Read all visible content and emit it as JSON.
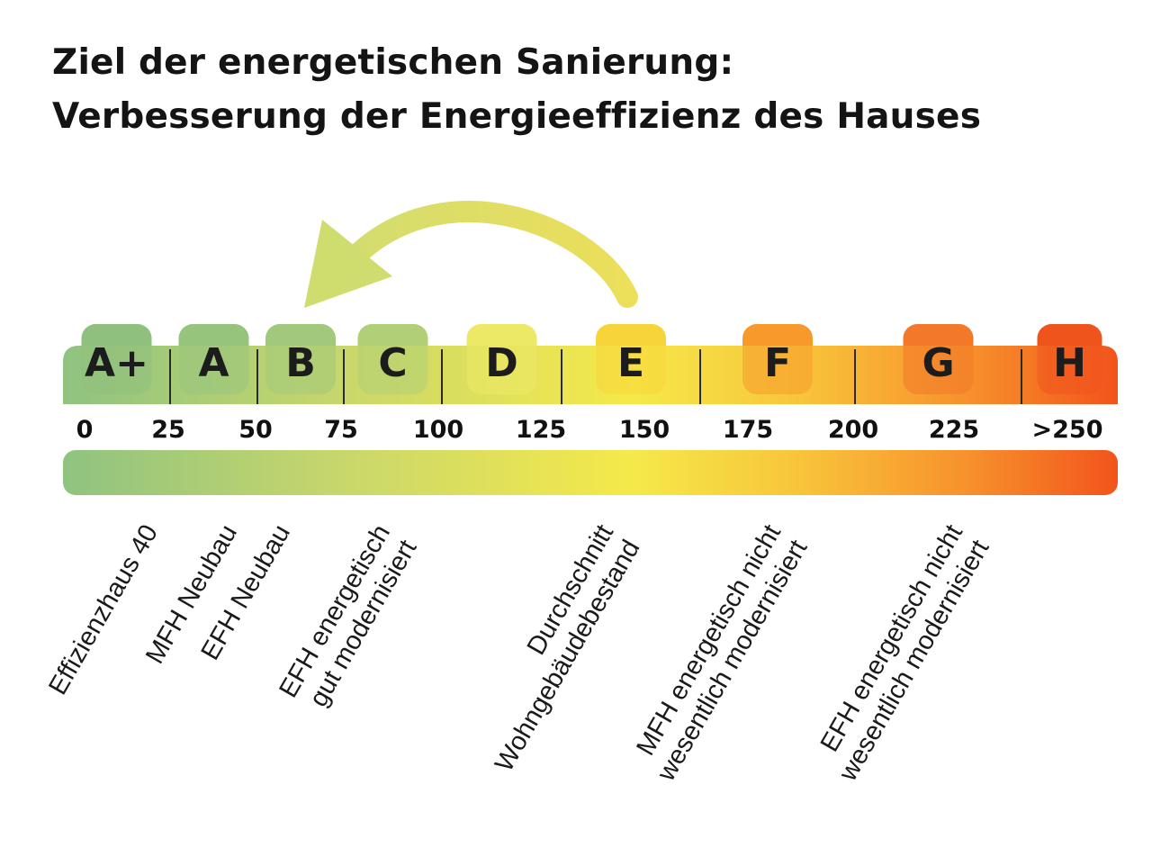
{
  "title": {
    "line1": "Ziel der energetischen Sanierung:",
    "line2": "Verbesserung der Energieeffizienz des Hauses"
  },
  "classes": [
    {
      "label": "A+",
      "from": 0,
      "to": 25
    },
    {
      "label": "A",
      "from": 25,
      "to": 50
    },
    {
      "label": "B",
      "from": 50,
      "to": 75
    },
    {
      "label": "C",
      "from": 75,
      "to": 100
    },
    {
      "label": "D",
      "from": 100,
      "to": 130
    },
    {
      "label": "E",
      "from": 130,
      "to": 160
    },
    {
      "label": "F",
      "from": 160,
      "to": 200
    },
    {
      "label": "G",
      "from": 200,
      "to": 250
    },
    {
      "label": "H",
      "from": 250,
      "to": 275
    }
  ],
  "ticks": [
    "0",
    "25",
    "50",
    "75",
    "100",
    "125",
    "150",
    "175",
    "200",
    "225",
    ">250"
  ],
  "descriptions": [
    {
      "lines": [
        "Effizienzhaus 40"
      ],
      "value": 40
    },
    {
      "lines": [
        "MFH Neubau"
      ],
      "value": 55
    },
    {
      "lines": [
        "EFH Neubau"
      ],
      "value": 70
    },
    {
      "lines": [
        "EFH energetisch",
        "gut modernisiert"
      ],
      "value": 100
    },
    {
      "lines": [
        "Durchschnitt",
        "Wohngebäudebestand"
      ],
      "value": 160
    },
    {
      "lines": [
        "MFH energetisch nicht",
        "wesentlich modernisiert"
      ],
      "value": 210
    },
    {
      "lines": [
        "EFH energetisch nicht",
        "wesentlich modernisiert"
      ],
      "value": 260
    }
  ],
  "arrow": {
    "from_class": "E",
    "to_class": "B"
  },
  "colors": {
    "green": "#8fc380",
    "yellow": "#f3e84c",
    "orange": "#f79b2c",
    "red": "#f2541b"
  }
}
